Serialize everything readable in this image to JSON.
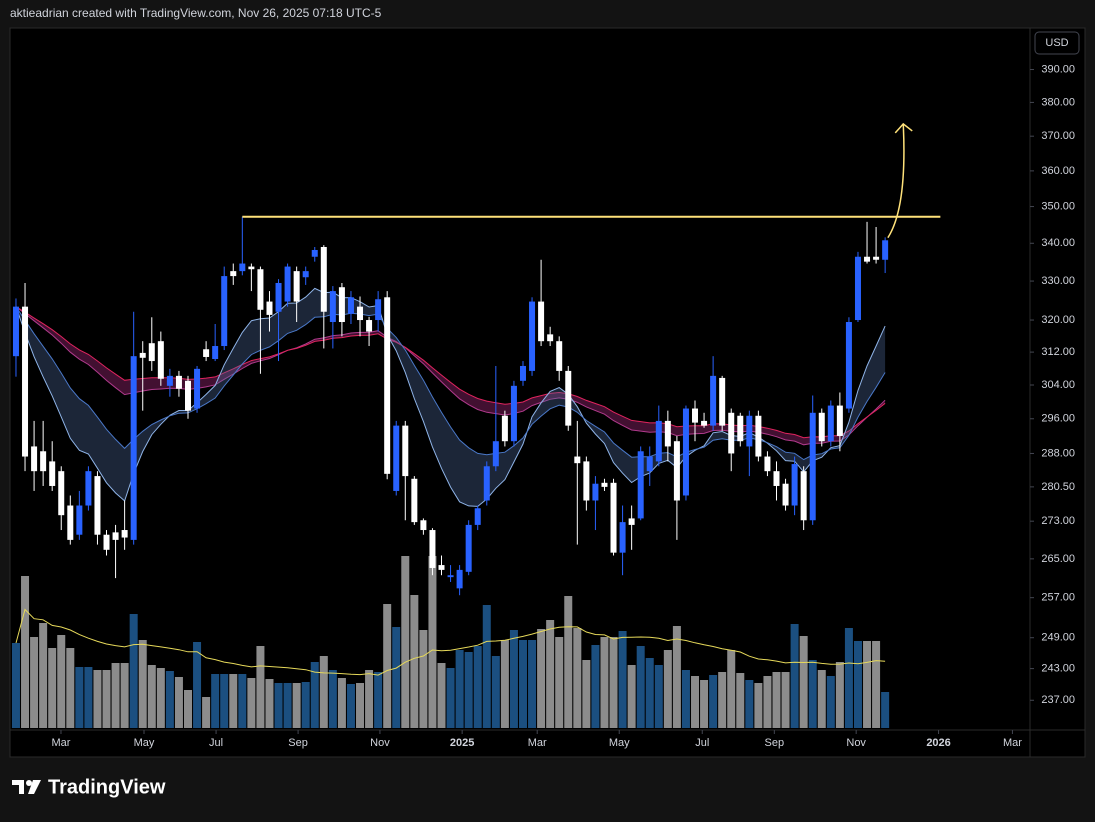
{
  "header": {
    "text": "aktieadrian created with TradingView.com, Nov 26, 2025 07:18 UTC-5"
  },
  "footer": {
    "brand": "TradingView"
  },
  "chart_data": {
    "type": "candlestick",
    "currency": "USD",
    "open": [
      311.0,
      323.4,
      289.6,
      288.5,
      286.2,
      284.0,
      276.4,
      270.1,
      276.4,
      282.9,
      270.1,
      270.6,
      271.1,
      269.0,
      311.8,
      314.2,
      314.7,
      303.8,
      306.2,
      305.0,
      298.4,
      312.7,
      310.3,
      313.5,
      332.6,
      332.6,
      333.8,
      333.1,
      324.7,
      322.1,
      324.7,
      332.6,
      331.0,
      336.4,
      339.0,
      319.5,
      328.4,
      321.6,
      323.4,
      320.0,
      320.0,
      325.8,
      279.6,
      294.4,
      282.3,
      273.2,
      271.1,
      263.7,
      261.2,
      258.9,
      262.3,
      272.2,
      277.5,
      285.1,
      296.7,
      290.8,
      305.0,
      307.4,
      324.7,
      316.4,
      314.7,
      307.4,
      287.3,
      286.2,
      277.5,
      281.4,
      281.4,
      266.3,
      273.6,
      273.6,
      284.0,
      286.2,
      295.5,
      290.8,
      278.6,
      298.4,
      295.5,
      294.4,
      305.7,
      297.4,
      296.7,
      289.6,
      296.7,
      287.3,
      284.0,
      281.2,
      276.4,
      284.0,
      273.2,
      297.4,
      290.8,
      299.1,
      298.4,
      320.0,
      336.4,
      336.4,
      335.6
    ],
    "high": [
      325.5,
      329.5,
      295.5,
      295.5,
      290.8,
      285.1,
      278.6,
      279.6,
      285.1,
      284.0,
      271.1,
      272.2,
      277.5,
      322.1,
      314.7,
      320.7,
      317.1,
      307.9,
      307.4,
      306.2,
      308.6,
      314.7,
      319.0,
      333.8,
      334.6,
      347.2,
      334.6,
      333.8,
      327.4,
      330.5,
      334.6,
      333.8,
      333.8,
      339.0,
      339.5,
      328.7,
      329.5,
      327.4,
      326.0,
      320.8,
      327.4,
      327.4,
      295.5,
      295.5,
      282.9,
      273.6,
      271.5,
      265.7,
      263.7,
      263.7,
      273.2,
      276.4,
      286.2,
      308.6,
      297.9,
      305.0,
      309.8,
      325.8,
      335.6,
      318.3,
      315.9,
      308.6,
      295.5,
      287.3,
      282.9,
      282.3,
      282.3,
      276.4,
      276.4,
      289.6,
      289.6,
      299.1,
      297.9,
      292.0,
      299.1,
      300.3,
      297.4,
      311.0,
      306.2,
      298.4,
      297.4,
      297.9,
      297.9,
      288.5,
      286.2,
      282.3,
      287.3,
      285.1,
      301.5,
      298.4,
      300.3,
      302.2,
      320.7,
      337.7,
      345.8,
      344.4,
      341.6
    ],
    "low": [
      306.0,
      284.0,
      279.6,
      280.7,
      279.6,
      271.1,
      268.0,
      269.0,
      275.3,
      268.0,
      265.7,
      261.0,
      266.9,
      268.0,
      297.9,
      307.4,
      303.8,
      301.2,
      301.2,
      296.0,
      297.4,
      309.8,
      309.8,
      312.5,
      329.0,
      331.5,
      327.4,
      306.7,
      317.1,
      309.8,
      323.4,
      319.5,
      329.0,
      335.1,
      312.9,
      312.9,
      315.9,
      319.0,
      315.9,
      313.5,
      317.1,
      282.2,
      278.6,
      273.2,
      272.2,
      270.1,
      261.6,
      261.6,
      260.2,
      257.5,
      261.6,
      271.1,
      276.4,
      284.0,
      289.6,
      289.6,
      303.8,
      306.2,
      313.5,
      313.5,
      305.0,
      293.2,
      268.0,
      275.3,
      271.1,
      279.6,
      265.7,
      261.6,
      266.9,
      273.2,
      280.7,
      285.1,
      286.2,
      269.0,
      277.5,
      290.8,
      293.9,
      293.2,
      293.2,
      284.0,
      289.6,
      282.9,
      286.2,
      282.9,
      277.5,
      275.3,
      274.3,
      271.1,
      272.2,
      289.6,
      289.6,
      288.5,
      297.4,
      319.5,
      334.6,
      334.6,
      332.1
    ],
    "close": [
      323.4,
      287.3,
      284.0,
      284.0,
      280.7,
      274.3,
      269.0,
      276.4,
      284.0,
      270.1,
      266.9,
      269.0,
      269.5,
      311.0,
      310.6,
      309.8,
      305.5,
      306.2,
      303.1,
      297.9,
      307.9,
      310.8,
      313.5,
      331.3,
      331.3,
      334.6,
      333.1,
      322.6,
      321.3,
      329.5,
      333.8,
      324.7,
      332.6,
      338.2,
      322.1,
      327.4,
      319.5,
      325.8,
      320.0,
      317.1,
      325.3,
      283.4,
      294.4,
      282.9,
      272.8,
      271.1,
      263.1,
      262.7,
      261.6,
      262.7,
      272.2,
      275.8,
      285.1,
      290.8,
      290.8,
      303.8,
      308.6,
      324.7,
      314.7,
      314.7,
      307.4,
      294.4,
      285.8,
      277.5,
      281.2,
      280.5,
      266.3,
      272.8,
      272.2,
      288.5,
      287.3,
      295.5,
      289.6,
      277.5,
      298.4,
      295.1,
      294.4,
      306.2,
      294.4,
      288.0,
      290.8,
      296.7,
      287.3,
      284.0,
      280.7,
      276.4,
      285.6,
      273.2,
      297.4,
      290.8,
      299.1,
      292.0,
      319.5,
      336.4,
      335.1,
      335.6,
      340.8
    ],
    "volume": [
      85,
      152,
      91,
      105,
      80,
      93,
      80,
      61,
      61,
      58,
      58,
      65,
      65,
      114,
      88,
      63,
      60,
      57,
      51,
      38,
      86,
      31,
      54,
      54,
      54,
      54,
      50,
      82,
      49,
      45,
      45,
      45,
      46,
      66,
      72,
      58,
      50,
      44,
      45,
      58,
      56,
      124,
      101,
      172,
      133,
      98,
      172,
      65,
      60,
      78,
      76,
      82,
      123,
      72,
      88,
      98,
      88,
      88,
      99,
      108,
      91,
      132,
      100,
      68,
      83,
      91,
      91,
      97,
      63,
      82,
      70,
      63,
      78,
      102,
      58,
      52,
      48,
      53,
      56,
      78,
      55,
      48,
      45,
      52,
      56,
      56,
      104,
      92,
      68,
      58,
      52,
      66,
      100,
      87,
      87,
      87,
      36
    ],
    "log_scale": true,
    "ylim": [
      231.5,
      403
    ],
    "yticks": [
      {
        "value": 390,
        "label": "390.00"
      },
      {
        "value": 380,
        "label": "380.00"
      },
      {
        "value": 370,
        "label": "370.00"
      },
      {
        "value": 360,
        "label": "360.00"
      },
      {
        "value": 350,
        "label": "350.00"
      },
      {
        "value": 340,
        "label": "340.00"
      },
      {
        "value": 330,
        "label": "330.00"
      },
      {
        "value": 320,
        "label": "320.00"
      },
      {
        "value": 312,
        "label": "312.00"
      },
      {
        "value": 304,
        "label": "304.00"
      },
      {
        "value": 296,
        "label": "296.00"
      },
      {
        "value": 288,
        "label": "288.00"
      },
      {
        "value": 280.5,
        "label": "280.50"
      },
      {
        "value": 273,
        "label": "273.00"
      },
      {
        "value": 265,
        "label": "265.00"
      },
      {
        "value": 257,
        "label": "257.00"
      },
      {
        "value": 249,
        "label": "249.00"
      },
      {
        "value": 243,
        "label": "243.00"
      },
      {
        "value": 237,
        "label": "237.00"
      }
    ],
    "xlim": [
      -0.66,
      112.0
    ],
    "xticks": [
      {
        "value": 4.97,
        "label": "Mar"
      },
      {
        "value": 14.14,
        "label": "May"
      },
      {
        "value": 22.1,
        "label": "Jul"
      },
      {
        "value": 31.16,
        "label": "Sep"
      },
      {
        "value": 40.2,
        "label": "Nov"
      },
      {
        "value": 49.28,
        "label": "2025"
      },
      {
        "value": 57.57,
        "label": "Mar"
      },
      {
        "value": 66.63,
        "label": "May"
      },
      {
        "value": 75.8,
        "label": "Jul"
      },
      {
        "value": 83.76,
        "label": "Sep"
      },
      {
        "value": 92.8,
        "label": "Nov"
      },
      {
        "value": 101.9,
        "label": "2026"
      },
      {
        "value": 110.06,
        "label": "Mar"
      }
    ],
    "up_color": "#2962ff",
    "down_color": "#ffffff",
    "volume_up_color": "#1b4f80",
    "volume_down_color": "#8c8c8c",
    "resistance": {
      "value": 347.2,
      "x": [
        25,
        102.1
      ],
      "color": "#ffe27a"
    },
    "arrow": {
      "x": [
        96.3,
        98.0
      ],
      "y": [
        341.5,
        373.6
      ],
      "color": "#ffe27a"
    }
  }
}
